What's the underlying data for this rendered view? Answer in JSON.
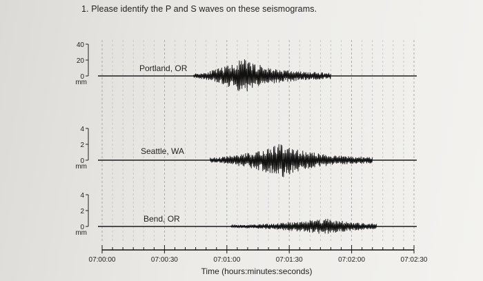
{
  "question": "1. Please identify the P and S waves on these seismograms.",
  "chart_data": {
    "type": "line",
    "xlabel": "Time (hours:minutes:seconds)",
    "x_ticks": [
      "07:00:00",
      "07:00:30",
      "07:01:00",
      "07:01:30",
      "07:02:00",
      "07:02:30"
    ],
    "xlim_seconds": [
      0,
      150
    ],
    "grid": "vertical dashed",
    "series": [
      {
        "name": "Portland, OR",
        "y_ticks": [
          "40",
          "20",
          "0"
        ],
        "y_unit": "mm",
        "ylim": [
          0,
          40
        ],
        "signal_start_s": 44,
        "signal_end_s": 110,
        "peak_at_s": 68,
        "peak_amplitude": 40
      },
      {
        "name": "Seattle, WA",
        "y_ticks": [
          "4",
          "2",
          "0"
        ],
        "y_unit": "mm",
        "ylim": [
          0,
          4
        ],
        "signal_start_s": 52,
        "signal_end_s": 130,
        "peak_at_s": 87,
        "peak_amplitude": 4
      },
      {
        "name": "Bend, OR",
        "y_ticks": [
          "4",
          "2",
          "0"
        ],
        "y_unit": "mm",
        "ylim": [
          0,
          4
        ],
        "signal_start_s": 62,
        "signal_end_s": 132,
        "peak_at_s": 108,
        "peak_amplitude": 2
      }
    ]
  }
}
